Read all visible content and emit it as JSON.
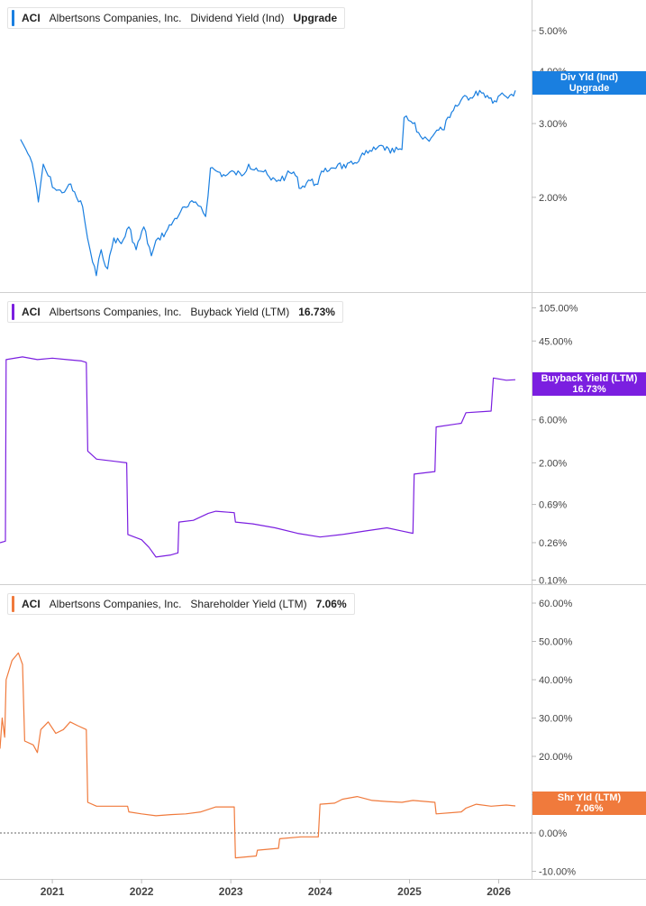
{
  "chart_data": [
    {
      "type": "line",
      "ticker": "ACI",
      "company": "Albertsons Companies, Inc.",
      "metric": "Dividend Yield (Ind)",
      "current_label": "Upgrade",
      "flag_label_1": "Div Yld (Ind)",
      "flag_label_2": "Upgrade",
      "flag_value": 3.5,
      "color": "#1a7fe0",
      "scale": "log",
      "ylim": [
        1.2,
        5.8
      ],
      "yticks": [
        {
          "v": 2.0,
          "label": "2.00%"
        },
        {
          "v": 3.0,
          "label": "3.00%"
        },
        {
          "v": 4.0,
          "label": "4.00%"
        },
        {
          "v": 5.0,
          "label": "5.00%"
        }
      ],
      "points": [
        [
          "2020-08-24",
          2.75
        ],
        [
          "2020-09-15",
          2.6
        ],
        [
          "2020-10-01",
          2.5
        ],
        [
          "2020-10-20",
          2.25
        ],
        [
          "2020-11-05",
          1.95
        ],
        [
          "2020-11-25",
          2.4
        ],
        [
          "2020-12-15",
          2.25
        ],
        [
          "2021-01-10",
          2.1
        ],
        [
          "2021-02-10",
          2.05
        ],
        [
          "2021-03-10",
          2.15
        ],
        [
          "2021-04-10",
          2.0
        ],
        [
          "2021-05-05",
          1.9
        ],
        [
          "2021-05-25",
          1.6
        ],
        [
          "2021-06-15",
          1.4
        ],
        [
          "2021-06-30",
          1.3
        ],
        [
          "2021-07-20",
          1.5
        ],
        [
          "2021-08-15",
          1.35
        ],
        [
          "2021-09-10",
          1.6
        ],
        [
          "2021-10-10",
          1.55
        ],
        [
          "2021-11-10",
          1.7
        ],
        [
          "2021-12-10",
          1.5
        ],
        [
          "2022-01-10",
          1.7
        ],
        [
          "2022-02-10",
          1.45
        ],
        [
          "2022-03-10",
          1.6
        ],
        [
          "2022-04-10",
          1.65
        ],
        [
          "2022-05-10",
          1.75
        ],
        [
          "2022-06-10",
          1.85
        ],
        [
          "2022-07-10",
          1.9
        ],
        [
          "2022-08-10",
          1.95
        ],
        [
          "2022-09-01",
          1.9
        ],
        [
          "2022-09-20",
          1.8
        ],
        [
          "2022-10-10",
          2.35
        ],
        [
          "2022-11-10",
          2.3
        ],
        [
          "2022-12-10",
          2.25
        ],
        [
          "2023-01-15",
          2.3
        ],
        [
          "2023-02-15",
          2.25
        ],
        [
          "2023-03-15",
          2.4
        ],
        [
          "2023-04-15",
          2.35
        ],
        [
          "2023-05-15",
          2.3
        ],
        [
          "2023-06-15",
          2.2
        ],
        [
          "2023-07-15",
          2.2
        ],
        [
          "2023-08-15",
          2.25
        ],
        [
          "2023-09-15",
          2.3
        ],
        [
          "2023-10-15",
          2.1
        ],
        [
          "2023-11-15",
          2.2
        ],
        [
          "2023-12-15",
          2.15
        ],
        [
          "2024-01-15",
          2.3
        ],
        [
          "2024-02-15",
          2.35
        ],
        [
          "2024-03-15",
          2.4
        ],
        [
          "2024-04-15",
          2.35
        ],
        [
          "2024-05-15",
          2.4
        ],
        [
          "2024-06-15",
          2.5
        ],
        [
          "2024-07-15",
          2.55
        ],
        [
          "2024-08-15",
          2.6
        ],
        [
          "2024-09-15",
          2.65
        ],
        [
          "2024-10-15",
          2.55
        ],
        [
          "2024-11-15",
          2.6
        ],
        [
          "2024-12-01",
          2.6
        ],
        [
          "2024-12-10",
          3.1
        ],
        [
          "2025-01-15",
          3.0
        ],
        [
          "2025-02-15",
          2.8
        ],
        [
          "2025-03-15",
          2.75
        ],
        [
          "2025-04-15",
          2.85
        ],
        [
          "2025-05-15",
          2.9
        ],
        [
          "2025-06-15",
          3.1
        ],
        [
          "2025-07-15",
          3.3
        ],
        [
          "2025-08-15",
          3.5
        ],
        [
          "2025-09-15",
          3.45
        ],
        [
          "2025-10-15",
          3.6
        ],
        [
          "2025-11-15",
          3.5
        ],
        [
          "2025-12-15",
          3.4
        ],
        [
          "2026-01-15",
          3.55
        ],
        [
          "2026-02-15",
          3.5
        ],
        [
          "2026-03-10",
          3.6
        ]
      ]
    },
    {
      "type": "line",
      "ticker": "ACI",
      "company": "Albertsons Companies, Inc.",
      "metric": "Buyback Yield (LTM)",
      "current_label": "16.73%",
      "flag_label_1": "Buyback Yield (LTM)",
      "flag_label_2": "16.73%",
      "flag_value": 16.73,
      "color": "#7b1fe0",
      "scale": "log",
      "ylim": [
        0.09,
        150
      ],
      "yticks": [
        {
          "v": 0.1,
          "label": "0.10%"
        },
        {
          "v": 0.26,
          "label": "0.26%"
        },
        {
          "v": 0.69,
          "label": "0.69%"
        },
        {
          "v": 2.0,
          "label": "2.00%"
        },
        {
          "v": 6.0,
          "label": "6.00%"
        },
        {
          "v": 45.0,
          "label": "45.00%"
        },
        {
          "v": 105.0,
          "label": "105.00%"
        }
      ],
      "points": [
        [
          "2020-06-01",
          0.26
        ],
        [
          "2020-06-23",
          0.27
        ],
        [
          "2020-06-26",
          28
        ],
        [
          "2020-09-01",
          30
        ],
        [
          "2020-11-01",
          28
        ],
        [
          "2021-01-01",
          29
        ],
        [
          "2021-03-01",
          28
        ],
        [
          "2021-05-01",
          27
        ],
        [
          "2021-05-20",
          26
        ],
        [
          "2021-05-26",
          2.7
        ],
        [
          "2021-07-01",
          2.2
        ],
        [
          "2021-09-01",
          2.1
        ],
        [
          "2021-11-01",
          2.0
        ],
        [
          "2021-11-06",
          0.32
        ],
        [
          "2022-01-01",
          0.28
        ],
        [
          "2022-02-01",
          0.23
        ],
        [
          "2022-03-01",
          0.18
        ],
        [
          "2022-05-01",
          0.19
        ],
        [
          "2022-05-30",
          0.2
        ],
        [
          "2022-06-03",
          0.44
        ],
        [
          "2022-08-01",
          0.46
        ],
        [
          "2022-10-01",
          0.55
        ],
        [
          "2022-11-01",
          0.58
        ],
        [
          "2023-01-15",
          0.56
        ],
        [
          "2023-01-20",
          0.44
        ],
        [
          "2023-04-01",
          0.42
        ],
        [
          "2023-07-01",
          0.38
        ],
        [
          "2023-10-01",
          0.33
        ],
        [
          "2024-01-01",
          0.3
        ],
        [
          "2024-04-01",
          0.32
        ],
        [
          "2024-07-01",
          0.35
        ],
        [
          "2024-10-01",
          0.38
        ],
        [
          "2024-12-01",
          0.35
        ],
        [
          "2025-01-15",
          0.33
        ],
        [
          "2025-01-20",
          1.5
        ],
        [
          "2025-04-15",
          1.6
        ],
        [
          "2025-04-20",
          5.0
        ],
        [
          "2025-08-01",
          5.5
        ],
        [
          "2025-08-20",
          7.2
        ],
        [
          "2025-12-01",
          7.5
        ],
        [
          "2025-12-10",
          17.5
        ],
        [
          "2026-02-01",
          16.5
        ],
        [
          "2026-03-10",
          16.73
        ]
      ]
    },
    {
      "type": "line",
      "ticker": "ACI",
      "company": "Albertsons Companies, Inc.",
      "metric": "Shareholder Yield (LTM)",
      "current_label": "7.06%",
      "flag_label_1": "Shr Yld (LTM)",
      "flag_label_2": "7.06%",
      "flag_value": 7.06,
      "color": "#f07a3c",
      "scale": "linear",
      "ylim": [
        -12,
        64
      ],
      "zero_line": true,
      "yticks": [
        {
          "v": -10,
          "label": "-10.00%"
        },
        {
          "v": 0,
          "label": "0.00%"
        },
        {
          "v": 10,
          "label": "10.00%"
        },
        {
          "v": 20,
          "label": "20.00%"
        },
        {
          "v": 30,
          "label": "30.00%"
        },
        {
          "v": 40,
          "label": "40.00%"
        },
        {
          "v": 50,
          "label": "50.00%"
        },
        {
          "v": 60,
          "label": "60.00%"
        }
      ],
      "points": [
        [
          "2020-06-01",
          22
        ],
        [
          "2020-06-10",
          30
        ],
        [
          "2020-06-20",
          25
        ],
        [
          "2020-06-26",
          40
        ],
        [
          "2020-07-20",
          45
        ],
        [
          "2020-08-15",
          47
        ],
        [
          "2020-09-01",
          44
        ],
        [
          "2020-09-10",
          24
        ],
        [
          "2020-10-15",
          23
        ],
        [
          "2020-11-01",
          21
        ],
        [
          "2020-11-15",
          27
        ],
        [
          "2020-12-15",
          29
        ],
        [
          "2021-01-15",
          26
        ],
        [
          "2021-02-15",
          27
        ],
        [
          "2021-03-15",
          29
        ],
        [
          "2021-04-15",
          28
        ],
        [
          "2021-05-20",
          27
        ],
        [
          "2021-05-26",
          8
        ],
        [
          "2021-07-01",
          7
        ],
        [
          "2021-09-01",
          7
        ],
        [
          "2021-11-05",
          7
        ],
        [
          "2021-11-10",
          5.5
        ],
        [
          "2022-01-01",
          5
        ],
        [
          "2022-03-01",
          4.5
        ],
        [
          "2022-05-01",
          4.8
        ],
        [
          "2022-07-01",
          5.0
        ],
        [
          "2022-09-01",
          5.5
        ],
        [
          "2022-11-01",
          6.8
        ],
        [
          "2023-01-15",
          6.8
        ],
        [
          "2023-01-20",
          -6.5
        ],
        [
          "2023-04-15",
          -6.0
        ],
        [
          "2023-04-20",
          -4.5
        ],
        [
          "2023-07-15",
          -4.0
        ],
        [
          "2023-07-20",
          -1.5
        ],
        [
          "2023-10-15",
          -1.0
        ],
        [
          "2023-12-25",
          -1.0
        ],
        [
          "2024-01-01",
          7.5
        ],
        [
          "2024-03-01",
          7.8
        ],
        [
          "2024-04-01",
          8.8
        ],
        [
          "2024-06-01",
          9.5
        ],
        [
          "2024-08-01",
          8.5
        ],
        [
          "2024-10-01",
          8.2
        ],
        [
          "2024-12-01",
          8.0
        ],
        [
          "2025-01-15",
          8.5
        ],
        [
          "2025-04-15",
          8.0
        ],
        [
          "2025-04-20",
          5.0
        ],
        [
          "2025-08-01",
          5.5
        ],
        [
          "2025-08-20",
          6.5
        ],
        [
          "2025-10-01",
          7.5
        ],
        [
          "2025-12-01",
          7.0
        ],
        [
          "2026-02-01",
          7.3
        ],
        [
          "2026-03-10",
          7.06
        ]
      ]
    }
  ],
  "x_axis": {
    "labels": [
      "2021",
      "2022",
      "2023",
      "2024",
      "2025",
      "2026"
    ],
    "start": "2020-06-01",
    "end": "2026-03-10"
  }
}
